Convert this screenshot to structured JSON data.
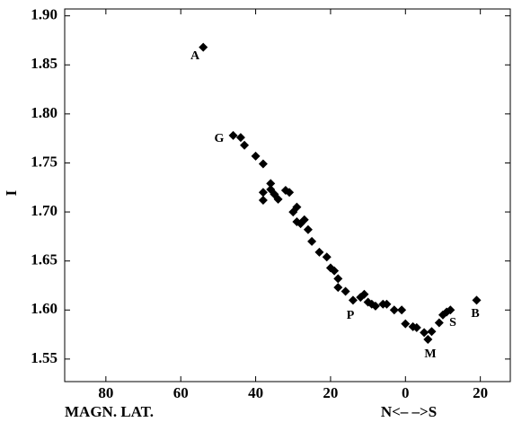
{
  "chart_data": {
    "type": "scatter",
    "ylabel": "I",
    "xlabel": "MAGN. LAT.",
    "xlabel_right": "N<– –>S",
    "color": "#000000",
    "annotations": [
      "A",
      "G",
      "P",
      "M",
      "S",
      "B"
    ],
    "xlim": [
      -91,
      28
    ],
    "ylim": [
      1.527,
      1.907
    ],
    "xticks": [
      {
        "value": -80,
        "label": "80"
      },
      {
        "value": -60,
        "label": "60"
      },
      {
        "value": -40,
        "label": "40"
      },
      {
        "value": -20,
        "label": "20"
      },
      0,
      {
        "value": 20,
        "label": "20"
      }
    ],
    "yticks": [
      {
        "value": 1.55,
        "label": "1.55"
      },
      {
        "value": 1.6,
        "label": "1.60"
      },
      {
        "value": 1.65,
        "label": "1.65"
      },
      {
        "value": 1.7,
        "label": "1.70"
      },
      {
        "value": 1.75,
        "label": "1.75"
      },
      {
        "value": 1.8,
        "label": "1.80"
      },
      {
        "value": 1.85,
        "label": "1.85"
      },
      {
        "value": 1.9,
        "label": "1.90"
      }
    ],
    "x": [
      -54,
      -46,
      -44,
      -43,
      -40,
      -38,
      -38,
      -38,
      -36,
      -36,
      -35,
      -34,
      -32,
      -31,
      -30,
      -29,
      -29,
      -28,
      -27,
      -26,
      -25,
      -23,
      -21,
      -20,
      -19,
      -18,
      -18,
      -16,
      -14,
      -12,
      -11,
      -10,
      -9,
      -8,
      -6,
      -5,
      -3,
      -1,
      0,
      2,
      3,
      5,
      6,
      7,
      9,
      10,
      11,
      12,
      19
    ],
    "values": [
      1.868,
      1.778,
      1.776,
      1.768,
      1.757,
      1.749,
      1.712,
      1.72,
      1.729,
      1.723,
      1.718,
      1.713,
      1.722,
      1.72,
      1.7,
      1.705,
      1.69,
      1.688,
      1.692,
      1.682,
      1.67,
      1.659,
      1.654,
      1.643,
      1.64,
      1.632,
      1.623,
      1.619,
      1.61,
      1.613,
      1.616,
      1.608,
      1.606,
      1.604,
      1.606,
      1.606,
      1.6,
      1.6,
      1.586,
      1.583,
      1.582,
      1.577,
      1.57,
      1.578,
      1.587,
      1.595,
      1.598,
      1.6,
      1.61
    ]
  }
}
